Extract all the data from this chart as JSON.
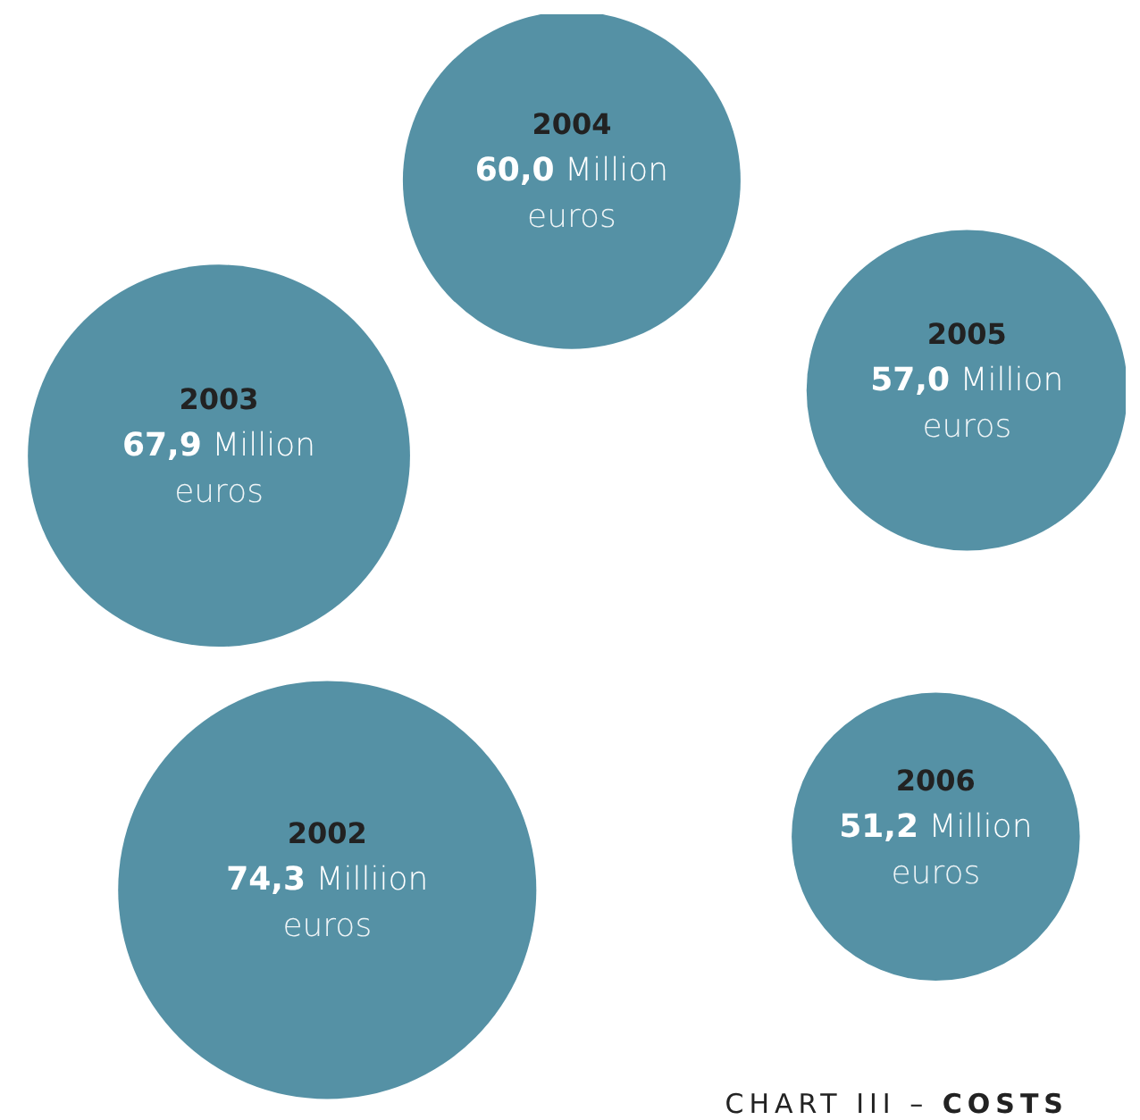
{
  "chart_data": {
    "type": "other",
    "title": "CHART III – COSTS",
    "categories": [
      "2002",
      "2003",
      "2004",
      "2005",
      "2006"
    ],
    "values": [
      74.3,
      67.9,
      60.0,
      57.0,
      51.2
    ],
    "value_labels": [
      "74,3 Milliion euros",
      "67,9 Million euros",
      "60,0 Million euros",
      "57,0 Million euros",
      "51,2 Million euros"
    ],
    "color": "#5591a5"
  }
}
